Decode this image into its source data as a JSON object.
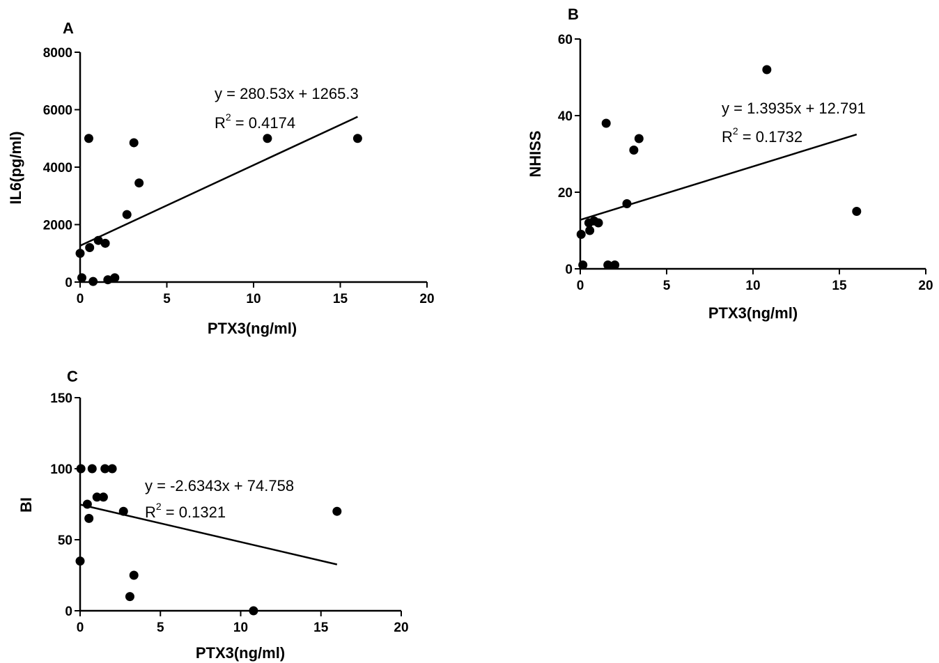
{
  "chart_data": [
    {
      "type": "scatter",
      "panel": "A",
      "xlabel": "PTX3(ng/ml)",
      "ylabel": "IL6(pg/ml)",
      "xlim": [
        0,
        20
      ],
      "ylim": [
        0,
        8000
      ],
      "xticks": [
        "0",
        "5",
        "10",
        "15",
        "20"
      ],
      "yticks": [
        "0",
        "2000",
        "4000",
        "6000",
        "8000"
      ],
      "points": [
        {
          "x": 0.0,
          "y": 1000
        },
        {
          "x": 0.1,
          "y": 150
        },
        {
          "x": 0.5,
          "y": 5000
        },
        {
          "x": 0.55,
          "y": 1200
        },
        {
          "x": 0.75,
          "y": 20
        },
        {
          "x": 1.05,
          "y": 1450
        },
        {
          "x": 1.45,
          "y": 1350
        },
        {
          "x": 1.6,
          "y": 80
        },
        {
          "x": 2.0,
          "y": 150
        },
        {
          "x": 2.7,
          "y": 2350
        },
        {
          "x": 3.1,
          "y": 4850
        },
        {
          "x": 3.4,
          "y": 3450
        },
        {
          "x": 10.8,
          "y": 5000
        },
        {
          "x": 16.0,
          "y": 5000
        }
      ],
      "trendline": {
        "slope": 280.53,
        "intercept": 1265.3,
        "x_range": [
          0,
          16
        ]
      },
      "equation_line1": "y = 280.53x + 1265.3",
      "r2_prefix": "R",
      "r2_sup": "2",
      "r2_rest": " = 0.4174"
    },
    {
      "type": "scatter",
      "panel": "B",
      "xlabel": "PTX3(ng/ml)",
      "ylabel": "NHISS",
      "xlim": [
        0,
        20
      ],
      "ylim": [
        0,
        60
      ],
      "xticks": [
        "0",
        "5",
        "10",
        "15",
        "20"
      ],
      "yticks": [
        "0",
        "20",
        "40",
        "60"
      ],
      "points": [
        {
          "x": 0.05,
          "y": 9
        },
        {
          "x": 0.15,
          "y": 1
        },
        {
          "x": 0.5,
          "y": 12
        },
        {
          "x": 0.55,
          "y": 10
        },
        {
          "x": 0.8,
          "y": 12.5
        },
        {
          "x": 1.05,
          "y": 12
        },
        {
          "x": 1.5,
          "y": 38
        },
        {
          "x": 1.6,
          "y": 1
        },
        {
          "x": 2.0,
          "y": 1
        },
        {
          "x": 2.7,
          "y": 17
        },
        {
          "x": 3.1,
          "y": 31
        },
        {
          "x": 3.4,
          "y": 34
        },
        {
          "x": 10.8,
          "y": 52
        },
        {
          "x": 16.0,
          "y": 15
        }
      ],
      "trendline": {
        "slope": 1.3935,
        "intercept": 12.791,
        "x_range": [
          0,
          16
        ]
      },
      "equation_line1": "y = 1.3935x + 12.791",
      "r2_prefix": "R",
      "r2_sup": "2",
      "r2_rest": " = 0.1732"
    },
    {
      "type": "scatter",
      "panel": "C",
      "xlabel": "PTX3(ng/ml)",
      "ylabel": "BI",
      "xlim": [
        0,
        20
      ],
      "ylim": [
        0,
        150
      ],
      "xticks": [
        "0",
        "5",
        "10",
        "15",
        "20"
      ],
      "yticks": [
        "0",
        "50",
        "100",
        "150"
      ],
      "points": [
        {
          "x": 0.05,
          "y": 100
        },
        {
          "x": 0.0,
          "y": 35
        },
        {
          "x": 0.45,
          "y": 75
        },
        {
          "x": 0.55,
          "y": 65
        },
        {
          "x": 0.75,
          "y": 100
        },
        {
          "x": 1.05,
          "y": 80
        },
        {
          "x": 1.45,
          "y": 80
        },
        {
          "x": 1.55,
          "y": 100
        },
        {
          "x": 2.0,
          "y": 100
        },
        {
          "x": 2.7,
          "y": 70
        },
        {
          "x": 3.1,
          "y": 10
        },
        {
          "x": 3.35,
          "y": 25
        },
        {
          "x": 10.8,
          "y": 0
        },
        {
          "x": 16.0,
          "y": 70
        }
      ],
      "trendline": {
        "slope": -2.6343,
        "intercept": 74.758,
        "x_range": [
          0,
          16
        ]
      },
      "equation_line1": "y = -2.6343x + 74.758",
      "r2_prefix": "R",
      "r2_sup": "2",
      "r2_rest": " = 0.1321"
    }
  ]
}
